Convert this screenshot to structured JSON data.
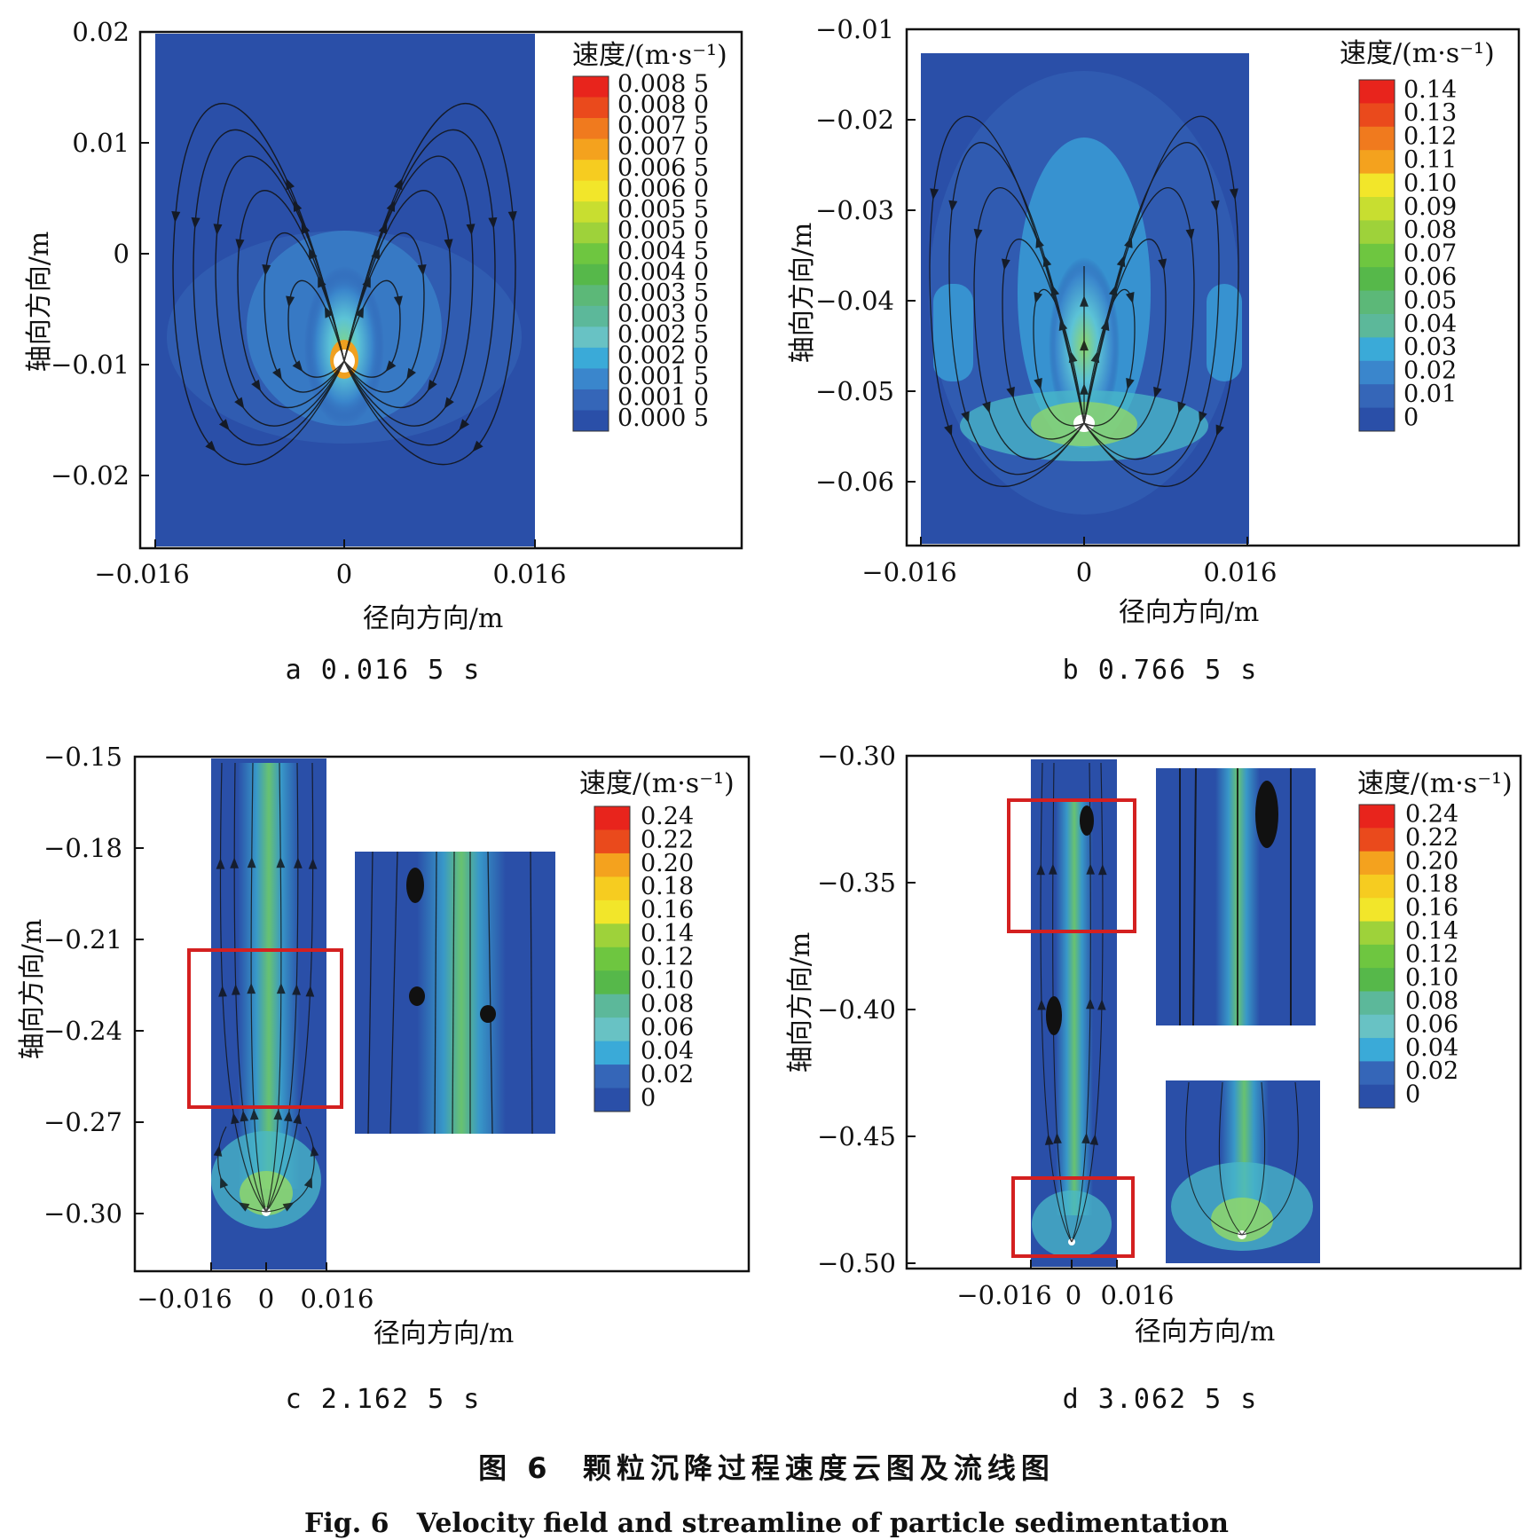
{
  "figure": {
    "caption_cn": "图 6  颗粒沉降过程速度云图及流线图",
    "caption_en": "Fig. 6   Velocity field and streamline of particle sedimentation"
  },
  "panels": [
    {
      "id": "a",
      "label": "a 0.016 5 s",
      "xlabel": "径向方向/m",
      "ylabel": "轴向方向/m",
      "xticks": [
        "−0.016",
        "0",
        "0.016"
      ],
      "yticks": [
        "0.02",
        "0.01",
        "0",
        "−0.01",
        "−0.02"
      ],
      "colorbar_title": "速度/(m·s⁻¹)",
      "colorbar_labels": [
        "0.008 5",
        "0.008 0",
        "0.007 5",
        "0.007 0",
        "0.006 5",
        "0.006 0",
        "0.005 5",
        "0.005 0",
        "0.004 5",
        "0.004 0",
        "0.003 5",
        "0.003 0",
        "0.002 5",
        "0.002 0",
        "0.001 5",
        "0.001 0",
        "0.000 5"
      ]
    },
    {
      "id": "b",
      "label": "b 0.766 5 s",
      "xlabel": "径向方向/m",
      "ylabel": "轴向方向/m",
      "xticks": [
        "−0.016",
        "0",
        "0.016"
      ],
      "yticks": [
        "−0.01",
        "−0.02",
        "−0.03",
        "−0.04",
        "−0.05",
        "−0.06"
      ],
      "colorbar_title": "速度/(m·s⁻¹)",
      "colorbar_labels": [
        "0.14",
        "0.13",
        "0.12",
        "0.11",
        "0.10",
        "0.09",
        "0.08",
        "0.07",
        "0.06",
        "0.05",
        "0.04",
        "0.03",
        "0.02",
        "0.01",
        "0"
      ]
    },
    {
      "id": "c",
      "label": "c 2.162 5 s",
      "xlabel": "径向方向/m",
      "ylabel": "轴向方向/m",
      "xticks": [
        "−0.016",
        "0",
        "0.016"
      ],
      "yticks": [
        "−0.15",
        "−0.18",
        "−0.21",
        "−0.24",
        "−0.27",
        "−0.30"
      ],
      "colorbar_title": "速度/(m·s⁻¹)",
      "colorbar_labels": [
        "0.24",
        "0.22",
        "0.20",
        "0.18",
        "0.16",
        "0.14",
        "0.12",
        "0.10",
        "0.08",
        "0.06",
        "0.04",
        "0.02",
        "0"
      ]
    },
    {
      "id": "d",
      "label": "d 3.062 5 s",
      "xlabel": "径向方向/m",
      "ylabel": "轴向方向/m",
      "xticks": [
        "−0.016",
        "0",
        "0.016"
      ],
      "yticks": [
        "−0.30",
        "−0.35",
        "−0.40",
        "−0.45",
        "−0.50"
      ],
      "colorbar_title": "速度/(m·s⁻¹)",
      "colorbar_labels": [
        "0.24",
        "0.22",
        "0.20",
        "0.18",
        "0.16",
        "0.14",
        "0.12",
        "0.10",
        "0.08",
        "0.06",
        "0.04",
        "0.02",
        "0"
      ]
    }
  ],
  "colors": {
    "field_base": "#2a4fa8",
    "highlight_box": "#d42020"
  }
}
